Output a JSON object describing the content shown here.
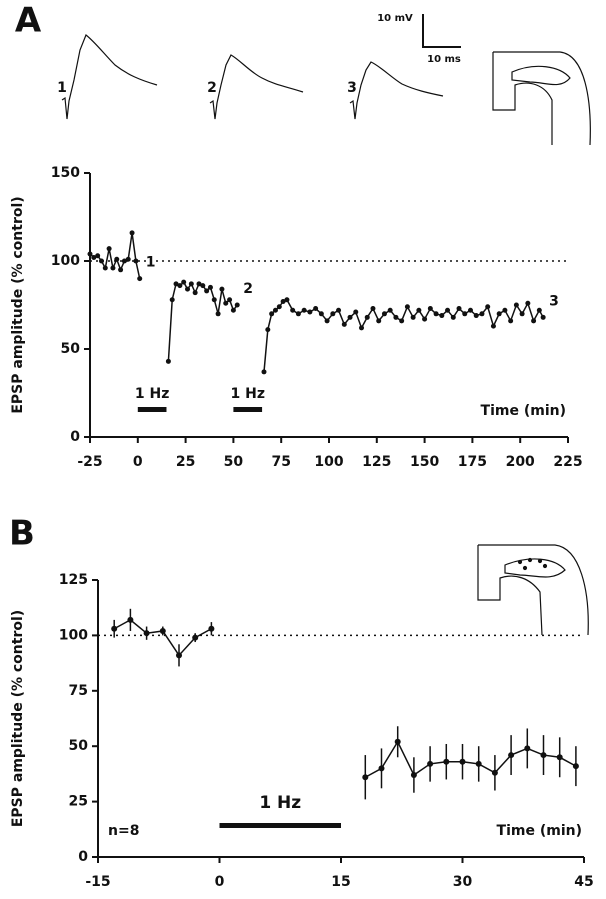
{
  "chart_data": [
    {
      "type": "line",
      "panel_label": "A",
      "ylabel": "EPSP amplitude  (% control)",
      "xlabel": "Time  (min)",
      "xlim": [
        -25,
        225
      ],
      "ylim": [
        0,
        150
      ],
      "xticks": [
        -25,
        0,
        25,
        50,
        75,
        100,
        125,
        150,
        175,
        200,
        225
      ],
      "yticks": [
        0,
        50,
        100,
        150
      ],
      "refline": 100,
      "stim": [
        {
          "label": "1  Hz",
          "x": [
            0,
            15
          ]
        },
        {
          "label": "1  Hz",
          "x": [
            50,
            65
          ]
        }
      ],
      "point_labels": [
        "1",
        "2",
        "3"
      ],
      "scale_bar": {
        "y": "10 mV",
        "x": "10 ms"
      },
      "color": "#111111",
      "series": [
        {
          "x": [
            -25,
            -23,
            -21,
            -19,
            -17,
            -15,
            -13,
            -11,
            -9,
            -7,
            -5,
            -3,
            -1,
            1,
            8,
            16,
            18,
            20,
            22,
            24,
            26,
            28,
            30,
            32,
            34,
            36,
            38,
            40,
            42,
            44,
            46,
            48,
            50,
            52,
            58,
            66,
            68,
            70,
            72,
            74,
            76,
            78,
            81,
            84,
            87,
            90,
            93,
            96,
            99,
            102,
            105,
            108,
            111,
            114,
            117,
            120,
            123,
            126,
            129,
            132,
            135,
            138,
            141,
            144,
            147,
            150,
            153,
            156,
            159,
            162,
            165,
            168,
            171,
            174,
            177,
            180,
            183,
            186,
            189,
            192,
            195,
            198,
            201,
            204,
            207,
            210,
            212
          ],
          "values": [
            104,
            102,
            103,
            100,
            96,
            107,
            96,
            101,
            95,
            100,
            101,
            116,
            100,
            90,
            null,
            43,
            78,
            87,
            86,
            88,
            84,
            87,
            82,
            87,
            86,
            83,
            85,
            78,
            70,
            84,
            76,
            78,
            72,
            75,
            null,
            37,
            61,
            70,
            72,
            74,
            77,
            78,
            72,
            70,
            72,
            71,
            73,
            70,
            66,
            70,
            72,
            64,
            68,
            71,
            62,
            68,
            73,
            66,
            70,
            72,
            68,
            66,
            74,
            68,
            72,
            67,
            73,
            70,
            69,
            72,
            68,
            73,
            70,
            72,
            69,
            70,
            74,
            63,
            70,
            72,
            66,
            75,
            70,
            76,
            66,
            72,
            68
          ]
        }
      ]
    },
    {
      "type": "line",
      "panel_label": "B",
      "ylabel": "EPSP amplitude  (% control)",
      "xlabel": "Time  (min)",
      "xlim": [
        -15,
        45
      ],
      "ylim": [
        0,
        125
      ],
      "xticks": [
        -15,
        0,
        15,
        30,
        45
      ],
      "yticks": [
        0,
        25,
        50,
        75,
        100,
        125
      ],
      "refline": 100,
      "stim": [
        {
          "label": "1  Hz",
          "x": [
            0,
            15
          ]
        }
      ],
      "note": "n=8",
      "color": "#111111",
      "series": [
        {
          "x": [
            -13,
            -11,
            -9,
            -7,
            -5,
            -3,
            -1,
            8,
            18,
            20,
            22,
            24,
            26,
            28,
            30,
            32,
            34,
            36,
            38,
            40,
            42,
            44
          ],
          "values": [
            103,
            107,
            101,
            102,
            91,
            99,
            103,
            null,
            36,
            40,
            52,
            37,
            42,
            43,
            43,
            42,
            38,
            46,
            49,
            46,
            45,
            41
          ],
          "errors": [
            4,
            5,
            3,
            2,
            5,
            2,
            3,
            null,
            10,
            9,
            7,
            8,
            8,
            8,
            8,
            8,
            8,
            9,
            9,
            9,
            9,
            9
          ]
        }
      ]
    }
  ]
}
